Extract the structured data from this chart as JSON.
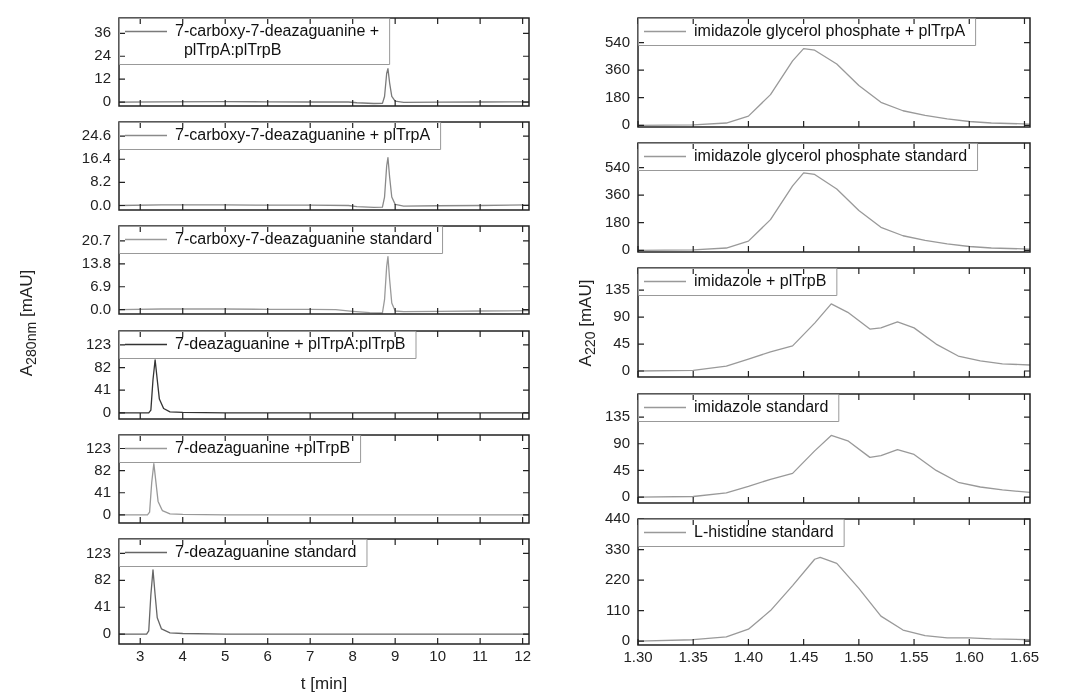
{
  "chart_data": [
    {
      "type": "line",
      "legend": "top left",
      "tick_labels": "y",
      "xlim": [
        2.5,
        12.15
      ],
      "xticks": [
        3,
        4,
        5,
        6,
        7,
        8,
        9,
        10,
        11,
        12
      ],
      "ylim": [
        -2,
        44
      ],
      "yticks": [
        0,
        12,
        24,
        36
      ],
      "series": [
        {
          "name": "7-carboxy-7-deazaguanine + plTrpA:plTrpB",
          "color": "#7a7a7a",
          "x": [
            2.5,
            3.5,
            5,
            6,
            7,
            7.9,
            8.1,
            8.5,
            8.7,
            8.75,
            8.8,
            8.83,
            8.87,
            8.92,
            9.0,
            9.2,
            10,
            11,
            12.15
          ],
          "values": [
            0,
            0.2,
            0.3,
            0.2,
            0.1,
            0.1,
            -0.3,
            -0.7,
            -0.6,
            3,
            15,
            17.5,
            10,
            3,
            0.5,
            -0.1,
            0,
            0.1,
            0.2
          ]
        }
      ]
    },
    {
      "type": "line",
      "legend": "top left",
      "tick_labels": "y",
      "xlim": [
        2.5,
        12.15
      ],
      "xticks": [
        3,
        4,
        5,
        6,
        7,
        8,
        9,
        10,
        11,
        12
      ],
      "ylim": [
        -1.6,
        29.6
      ],
      "yticks": [
        {
          "value": 0,
          "label": "0.0"
        },
        8.2,
        16.4,
        24.6
      ],
      "series": [
        {
          "name": "7-carboxy-7-deazaguanine + plTrpA",
          "color": "#8a8a8a",
          "x": [
            2.5,
            3.5,
            5,
            6,
            7,
            7.9,
            8.1,
            8.5,
            8.7,
            8.75,
            8.8,
            8.83,
            8.87,
            8.92,
            9.0,
            9.2,
            10,
            11,
            12.15
          ],
          "values": [
            0,
            0.2,
            0.2,
            0.1,
            0.1,
            0,
            -0.4,
            -0.7,
            -0.6,
            3,
            14,
            17,
            10,
            3,
            0.4,
            -0.2,
            -0.1,
            0,
            0.2
          ]
        }
      ]
    },
    {
      "type": "line",
      "legend": "top left",
      "tick_labels": "y",
      "xlim": [
        2.5,
        12.15
      ],
      "xticks": [
        3,
        4,
        5,
        6,
        7,
        8,
        9,
        10,
        11,
        12
      ],
      "ylim": [
        -1.3,
        25.2
      ],
      "yticks": [
        {
          "value": 0,
          "label": "0.0"
        },
        6.9,
        13.8,
        20.7
      ],
      "series": [
        {
          "name": "7-carboxy-7-deazaguanine standard",
          "color": "#9a9a9a",
          "x": [
            2.5,
            3.5,
            5,
            6,
            7,
            7.6,
            8.0,
            8.4,
            8.7,
            8.75,
            8.8,
            8.83,
            8.87,
            8.92,
            9.0,
            9.2,
            10,
            11,
            12.15
          ],
          "values": [
            0,
            0.2,
            0.2,
            0.1,
            0.1,
            0,
            -0.5,
            -0.9,
            -1,
            3,
            13,
            16,
            9,
            2,
            -0.4,
            -0.6,
            -0.5,
            -0.4,
            -0.3
          ]
        }
      ]
    },
    {
      "type": "line",
      "ylabel": "A$_{280nm}$ [mAU]",
      "legend": "top left",
      "tick_labels": "y",
      "xlim": [
        2.5,
        12.15
      ],
      "xticks": [
        3,
        4,
        5,
        6,
        7,
        8,
        9,
        10,
        11,
        12
      ],
      "ylim": [
        -11,
        148
      ],
      "yticks": [
        0,
        41,
        82,
        123
      ],
      "series": [
        {
          "name": "7-deazaguanine + plTrpA:plTrpB",
          "color": "#333333",
          "x": [
            2.5,
            3.2,
            3.25,
            3.3,
            3.35,
            3.4,
            3.45,
            3.55,
            3.7,
            4,
            5,
            6,
            8,
            10,
            12.15
          ],
          "values": [
            0,
            0,
            5,
            60,
            96,
            60,
            25,
            8,
            2,
            1,
            0,
            0,
            0,
            0,
            0
          ]
        }
      ]
    },
    {
      "type": "line",
      "legend": "top left",
      "tick_labels": "y",
      "xlim": [
        2.5,
        12.15
      ],
      "xticks": [
        3,
        4,
        5,
        6,
        7,
        8,
        9,
        10,
        11,
        12
      ],
      "ylim": [
        -15,
        148
      ],
      "yticks": [
        0,
        41,
        82,
        123
      ],
      "series": [
        {
          "name": "7-deazaguanine +plTrpB",
          "color": "#999999",
          "x": [
            2.5,
            3.17,
            3.22,
            3.27,
            3.32,
            3.37,
            3.42,
            3.52,
            3.7,
            4,
            5,
            6,
            8,
            10,
            12.15
          ],
          "values": [
            0,
            0,
            5,
            60,
            95,
            60,
            25,
            8,
            2,
            1,
            0,
            0,
            0,
            0,
            0
          ]
        }
      ]
    },
    {
      "type": "line",
      "xlabel": "t [min]",
      "legend": "top left",
      "xlim": [
        2.5,
        12.15
      ],
      "xticks": [
        3,
        4,
        5,
        6,
        7,
        8,
        9,
        10,
        11,
        12
      ],
      "ylim": [
        -15,
        145
      ],
      "yticks": [
        0,
        41,
        82,
        123
      ],
      "series": [
        {
          "name": "7-deazaguanine standard",
          "color": "#666666",
          "x": [
            2.5,
            3.15,
            3.2,
            3.25,
            3.3,
            3.35,
            3.4,
            3.5,
            3.7,
            4,
            5,
            6,
            8,
            10,
            12.15
          ],
          "values": [
            0,
            0,
            5,
            60,
            98,
            60,
            25,
            8,
            2,
            1,
            0,
            0,
            0,
            0,
            0
          ]
        }
      ]
    },
    {
      "type": "line",
      "legend": "top left",
      "tick_labels": "y",
      "xlim": [
        1.3,
        1.655
      ],
      "xticks": [
        1.3,
        1.35,
        1.4,
        1.45,
        1.5,
        1.55,
        1.6,
        1.65
      ],
      "ylim": [
        -11,
        700
      ],
      "yticks": [
        0,
        180,
        360,
        540
      ],
      "series": [
        {
          "name": "imidazole glycerol phosphate + plTrpA",
          "color": "#999999",
          "x": [
            1.3,
            1.35,
            1.38,
            1.4,
            1.42,
            1.44,
            1.45,
            1.46,
            1.48,
            1.5,
            1.52,
            1.54,
            1.56,
            1.58,
            1.6,
            1.62,
            1.655
          ],
          "values": [
            0,
            3,
            15,
            60,
            200,
            420,
            500,
            490,
            400,
            260,
            150,
            95,
            65,
            42,
            25,
            15,
            8
          ]
        }
      ]
    },
    {
      "type": "line",
      "legend": "top left",
      "tick_labels": "y",
      "xlim": [
        1.3,
        1.655
      ],
      "xticks": [
        1.3,
        1.35,
        1.4,
        1.45,
        1.5,
        1.55,
        1.6,
        1.65
      ],
      "ylim": [
        -11,
        700
      ],
      "yticks": [
        0,
        180,
        360,
        540
      ],
      "series": [
        {
          "name": "imidazole glycerol phosphate standard",
          "color": "#999999",
          "x": [
            1.3,
            1.35,
            1.38,
            1.4,
            1.42,
            1.44,
            1.45,
            1.46,
            1.48,
            1.5,
            1.52,
            1.54,
            1.56,
            1.58,
            1.6,
            1.62,
            1.655
          ],
          "values": [
            0,
            3,
            15,
            60,
            200,
            420,
            505,
            495,
            400,
            260,
            150,
            95,
            65,
            42,
            25,
            15,
            8
          ]
        }
      ]
    },
    {
      "type": "line",
      "ylabel": "A$_{220}$ [mAU]",
      "legend": "top left",
      "tick_labels": "y",
      "xlim": [
        1.3,
        1.655
      ],
      "xticks": [
        1.3,
        1.35,
        1.4,
        1.45,
        1.5,
        1.55,
        1.6,
        1.65
      ],
      "ylim": [
        -10,
        172
      ],
      "yticks": [
        0,
        45,
        90,
        135
      ],
      "series": [
        {
          "name": "imidazole + plTrpB",
          "color": "#999999",
          "x": [
            1.3,
            1.35,
            1.38,
            1.4,
            1.42,
            1.44,
            1.46,
            1.475,
            1.49,
            1.51,
            1.52,
            1.535,
            1.55,
            1.57,
            1.59,
            1.61,
            1.63,
            1.655
          ],
          "values": [
            0,
            1,
            8,
            20,
            32,
            42,
            80,
            112,
            98,
            70,
            72,
            82,
            72,
            45,
            25,
            17,
            12,
            10
          ]
        }
      ]
    },
    {
      "type": "line",
      "legend": "top left",
      "tick_labels": "y",
      "xlim": [
        1.3,
        1.655
      ],
      "xticks": [
        1.3,
        1.35,
        1.4,
        1.45,
        1.5,
        1.55,
        1.6,
        1.65
      ],
      "ylim": [
        -10,
        174
      ],
      "yticks": [
        0,
        45,
        90,
        135
      ],
      "series": [
        {
          "name": "imidazole standard",
          "color": "#999999",
          "x": [
            1.3,
            1.35,
            1.38,
            1.4,
            1.42,
            1.44,
            1.46,
            1.475,
            1.49,
            1.51,
            1.52,
            1.535,
            1.55,
            1.57,
            1.59,
            1.61,
            1.63,
            1.655
          ],
          "values": [
            0,
            1,
            7,
            18,
            30,
            40,
            78,
            104,
            95,
            67,
            70,
            80,
            72,
            45,
            25,
            17,
            12,
            8
          ]
        }
      ]
    },
    {
      "type": "line",
      "legend": "top left",
      "xlim": [
        1.3,
        1.655
      ],
      "xticks": [
        {
          "value": 1.3,
          "label": "1.30"
        },
        1.35,
        {
          "value": 1.4,
          "label": "1.40"
        },
        1.45,
        {
          "value": 1.5,
          "label": "1.50"
        },
        1.55,
        {
          "value": 1.6,
          "label": "1.60"
        },
        1.65
      ],
      "ylim": [
        -14,
        440
      ],
      "yticks": [
        0,
        110,
        220,
        330,
        440
      ],
      "series": [
        {
          "name": "L-histidine standard",
          "color": "#999999",
          "x": [
            1.3,
            1.35,
            1.38,
            1.4,
            1.42,
            1.44,
            1.46,
            1.465,
            1.48,
            1.5,
            1.52,
            1.54,
            1.56,
            1.58,
            1.6,
            1.62,
            1.655
          ],
          "values": [
            0,
            5,
            15,
            43,
            110,
            200,
            295,
            302,
            280,
            190,
            90,
            40,
            20,
            12,
            12,
            8,
            5
          ]
        }
      ]
    }
  ]
}
